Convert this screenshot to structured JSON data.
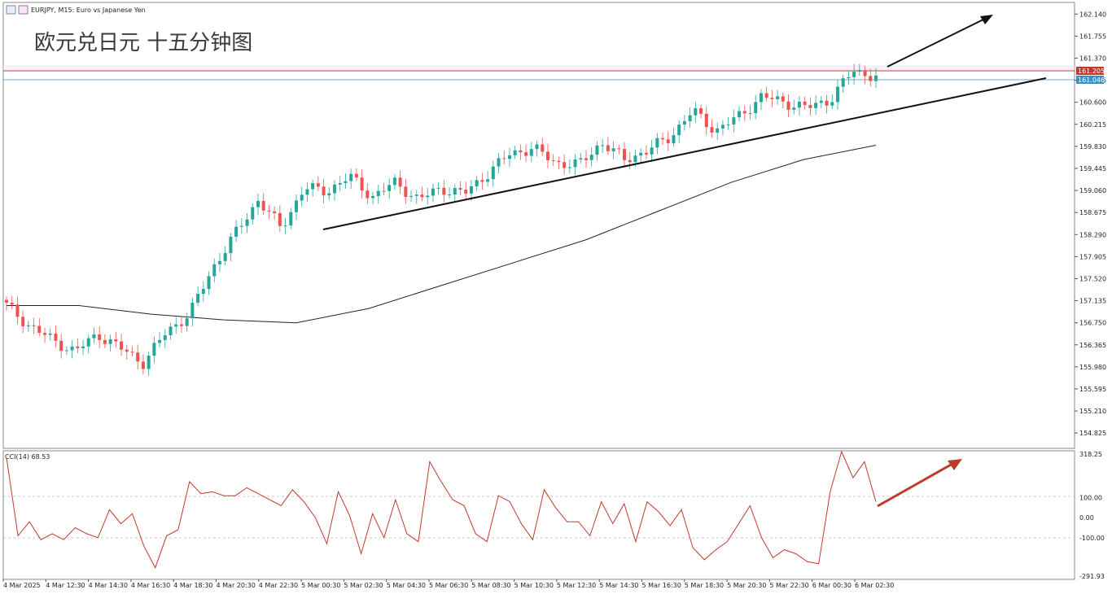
{
  "header": {
    "symbol_info": "EURJPY, M15:  Euro vs Japanese Yen",
    "overlay_title": "欧元兑日元 十五分钟图"
  },
  "price_panel": {
    "price_ticks": [
      "162.140",
      "161.755",
      "161.370",
      "160.985",
      "160.600",
      "160.215",
      "159.830",
      "159.445",
      "159.060",
      "158.675",
      "158.290",
      "157.905",
      "157.520",
      "157.135",
      "156.750",
      "156.365",
      "155.980",
      "155.595",
      "155.210",
      "154.825"
    ],
    "resistance_label": "161.205",
    "current_label": "161.046",
    "resistance_color": "#c0392b",
    "current_color": "#3a8fc4"
  },
  "indicator_panel": {
    "label": "CCI(14) 68.53",
    "ticks": [
      "318.25",
      "100.00",
      "0.00",
      "-100.00",
      "-291.93"
    ],
    "line_color": "#c0392b",
    "arrow_color": "#c0392b"
  },
  "time_axis": {
    "labels": [
      "4 Mar 2025",
      "4 Mar 12:30",
      "4 Mar 14:30",
      "4 Mar 16:30",
      "4 Mar 18:30",
      "4 Mar 20:30",
      "4 Mar 22:30",
      "5 Mar 00:30",
      "5 Mar 02:30",
      "5 Mar 04:30",
      "5 Mar 06:30",
      "5 Mar 08:30",
      "5 Mar 10:30",
      "5 Mar 12:30",
      "5 Mar 14:30",
      "5 Mar 16:30",
      "5 Mar 18:30",
      "5 Mar 20:30",
      "5 Mar 22:30",
      "6 Mar 00:30",
      "6 Mar 02:30"
    ]
  },
  "colors": {
    "bull": "#26a69a",
    "bear": "#ef5350",
    "ma": "#222222",
    "trend": "#111111"
  },
  "chart_data": {
    "type": "candlestick",
    "ylim": [
      154.6,
      162.3
    ],
    "cci_ylim": [
      -291.93,
      318.25
    ],
    "candle_close_anchors": [
      157.05,
      156.7,
      156.45,
      156.25,
      156.55,
      156.3,
      156.05,
      156.6,
      156.9,
      157.7,
      158.3,
      158.9,
      158.4,
      159.1,
      159.05,
      159.3,
      158.95,
      159.2,
      158.9,
      159.1,
      159.0,
      159.35,
      159.7,
      159.8,
      159.55,
      159.5,
      159.9,
      159.6,
      159.75,
      160.0,
      160.45,
      160.1,
      160.35,
      160.7,
      160.6,
      160.5,
      160.65,
      161.15,
      161.05
    ],
    "ma_path": [
      157.05,
      157.05,
      156.9,
      156.8,
      156.75,
      157.0,
      157.4,
      157.8,
      158.2,
      158.7,
      159.2,
      159.6,
      159.85
    ],
    "cci_values": [
      300,
      -90,
      -20,
      -110,
      -80,
      -110,
      -50,
      -80,
      -100,
      40,
      -30,
      20,
      -140,
      -250,
      -90,
      -60,
      180,
      120,
      130,
      110,
      110,
      150,
      120,
      90,
      60,
      140,
      80,
      0,
      -130,
      130,
      10,
      -180,
      20,
      -100,
      90,
      -80,
      -120,
      280,
      180,
      90,
      60,
      -80,
      -120,
      110,
      80,
      -30,
      -110,
      140,
      50,
      -20,
      -20,
      -90,
      80,
      -30,
      70,
      -120,
      80,
      30,
      -40,
      40,
      -150,
      -210,
      -160,
      -120,
      -30,
      60,
      -100,
      -200,
      -160,
      -180,
      -220,
      -230,
      130,
      330,
      200,
      280,
      80
    ]
  }
}
